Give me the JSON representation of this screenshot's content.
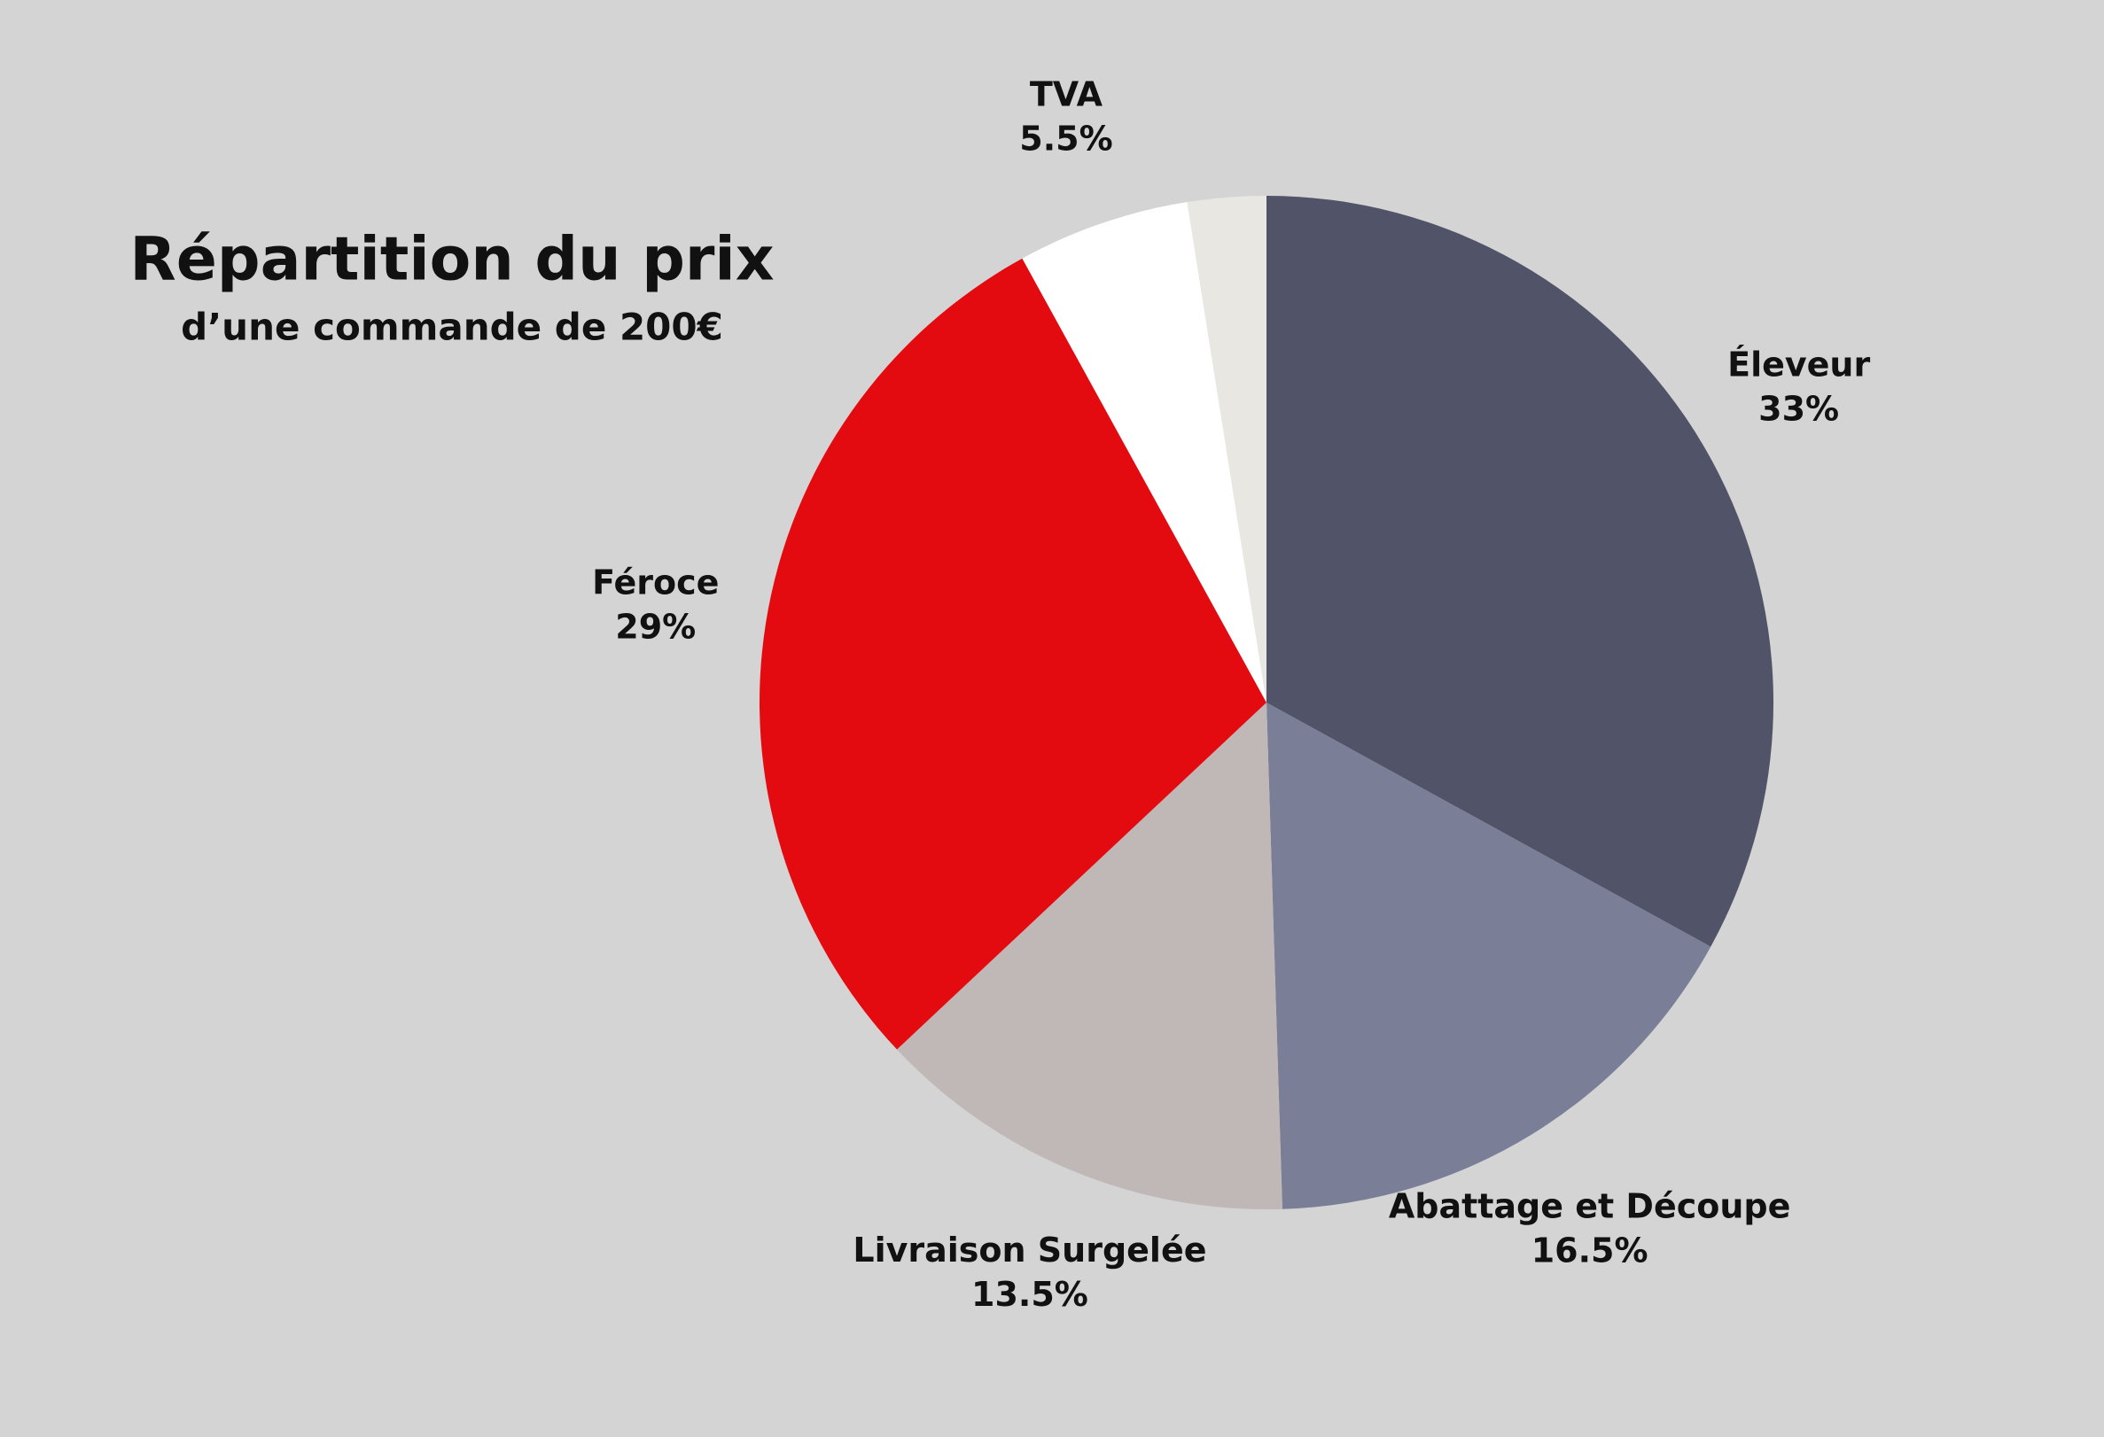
{
  "chart_data": {
    "type": "pie",
    "title": "Répartition du prix",
    "subtitle": "d’une commande de 200€",
    "categories": [
      "Éleveur",
      "Abattage et Découpe",
      "Livraison Surgelée",
      "Féroce",
      "TVA",
      null
    ],
    "values": [
      33,
      16.5,
      13.5,
      29,
      5.5,
      2.5
    ],
    "value_labels": [
      "33%",
      "16.5%",
      "13.5%",
      "29%",
      "5.5%",
      null
    ],
    "colors": [
      "#515368",
      "#7a7e97",
      "#c0b8b7",
      "#e30b10",
      "#ffffff",
      "#e8e7e2"
    ]
  }
}
